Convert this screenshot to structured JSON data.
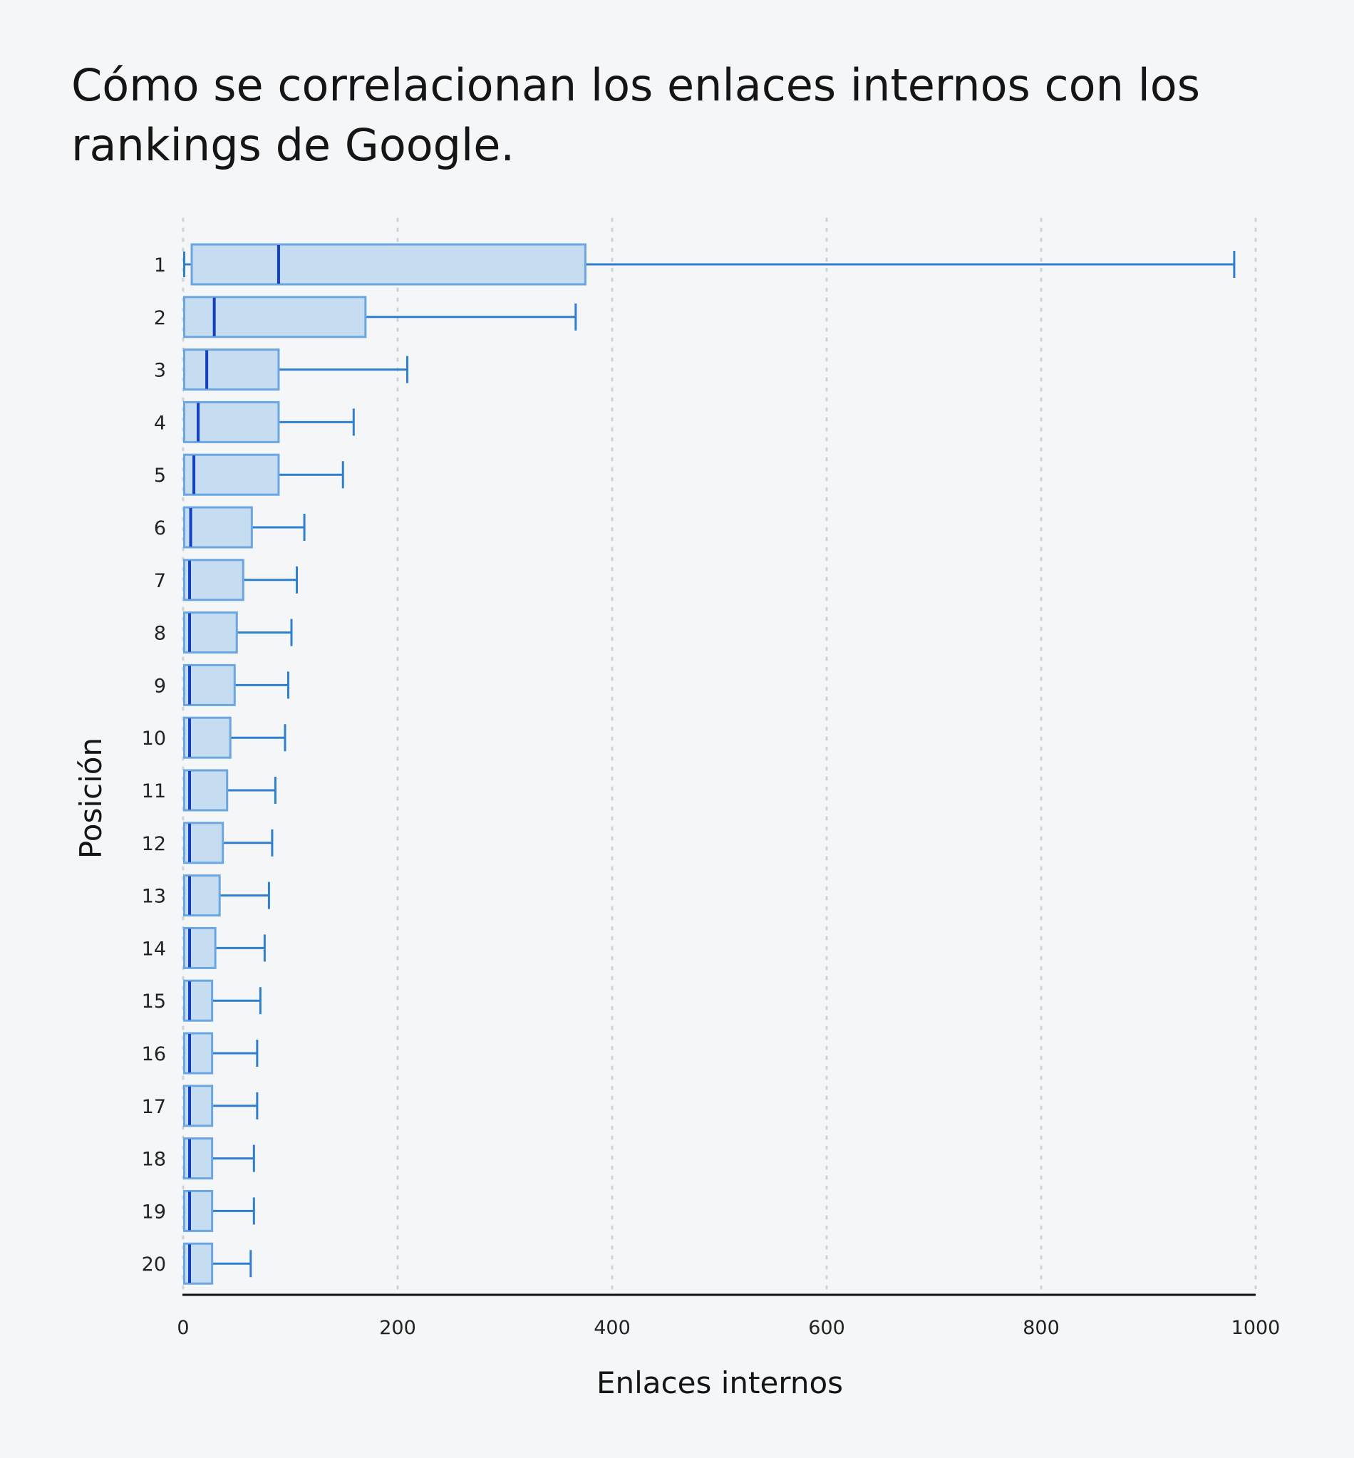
{
  "chart_data": {
    "type": "boxplot",
    "orientation": "horizontal",
    "title": "Cómo se correlacionan los enlaces internos con los rankings de Google.",
    "xlabel": "Enlaces internos",
    "ylabel": "Posición",
    "xlim": [
      0,
      1000
    ],
    "xticks": [
      0,
      200,
      400,
      600,
      800,
      1000
    ],
    "grid": "vertical-dotted",
    "colors": {
      "box_fill": "#c6dcf1",
      "box_stroke": "#6aa6e2",
      "median": "#1140c0",
      "whisker": "#2f7fcf",
      "axis": "#111111",
      "grid": "#cfd3d8"
    },
    "categories": [
      "1",
      "2",
      "3",
      "4",
      "5",
      "6",
      "7",
      "8",
      "9",
      "10",
      "11",
      "12",
      "13",
      "14",
      "15",
      "16",
      "17",
      "18",
      "19",
      "20"
    ],
    "boxes": [
      {
        "position": "1",
        "min": 1,
        "q1": 8,
        "median": 89,
        "q3": 375,
        "max": 980
      },
      {
        "position": "2",
        "min": 1,
        "q1": 1,
        "median": 29,
        "q3": 170,
        "max": 366
      },
      {
        "position": "3",
        "min": 1,
        "q1": 1,
        "median": 22,
        "q3": 89,
        "max": 209
      },
      {
        "position": "4",
        "min": 1,
        "q1": 1,
        "median": 14,
        "q3": 89,
        "max": 159
      },
      {
        "position": "5",
        "min": 1,
        "q1": 1,
        "median": 10,
        "q3": 89,
        "max": 149
      },
      {
        "position": "6",
        "min": 1,
        "q1": 1,
        "median": 7,
        "q3": 64,
        "max": 113
      },
      {
        "position": "7",
        "min": 1,
        "q1": 1,
        "median": 6,
        "q3": 56,
        "max": 106
      },
      {
        "position": "8",
        "min": 1,
        "q1": 1,
        "median": 6,
        "q3": 50,
        "max": 101
      },
      {
        "position": "9",
        "min": 1,
        "q1": 1,
        "median": 6,
        "q3": 48,
        "max": 98
      },
      {
        "position": "10",
        "min": 1,
        "q1": 1,
        "median": 6,
        "q3": 44,
        "max": 95
      },
      {
        "position": "11",
        "min": 1,
        "q1": 1,
        "median": 6,
        "q3": 41,
        "max": 86
      },
      {
        "position": "12",
        "min": 1,
        "q1": 1,
        "median": 6,
        "q3": 37,
        "max": 83
      },
      {
        "position": "13",
        "min": 1,
        "q1": 1,
        "median": 6,
        "q3": 34,
        "max": 80
      },
      {
        "position": "14",
        "min": 1,
        "q1": 1,
        "median": 6,
        "q3": 30,
        "max": 76
      },
      {
        "position": "15",
        "min": 1,
        "q1": 1,
        "median": 6,
        "q3": 27,
        "max": 72
      },
      {
        "position": "16",
        "min": 1,
        "q1": 1,
        "median": 6,
        "q3": 27,
        "max": 69
      },
      {
        "position": "17",
        "min": 1,
        "q1": 1,
        "median": 6,
        "q3": 27,
        "max": 69
      },
      {
        "position": "18",
        "min": 1,
        "q1": 1,
        "median": 6,
        "q3": 27,
        "max": 66
      },
      {
        "position": "19",
        "min": 1,
        "q1": 1,
        "median": 6,
        "q3": 27,
        "max": 66
      },
      {
        "position": "20",
        "min": 1,
        "q1": 1,
        "median": 6,
        "q3": 27,
        "max": 63
      }
    ]
  }
}
